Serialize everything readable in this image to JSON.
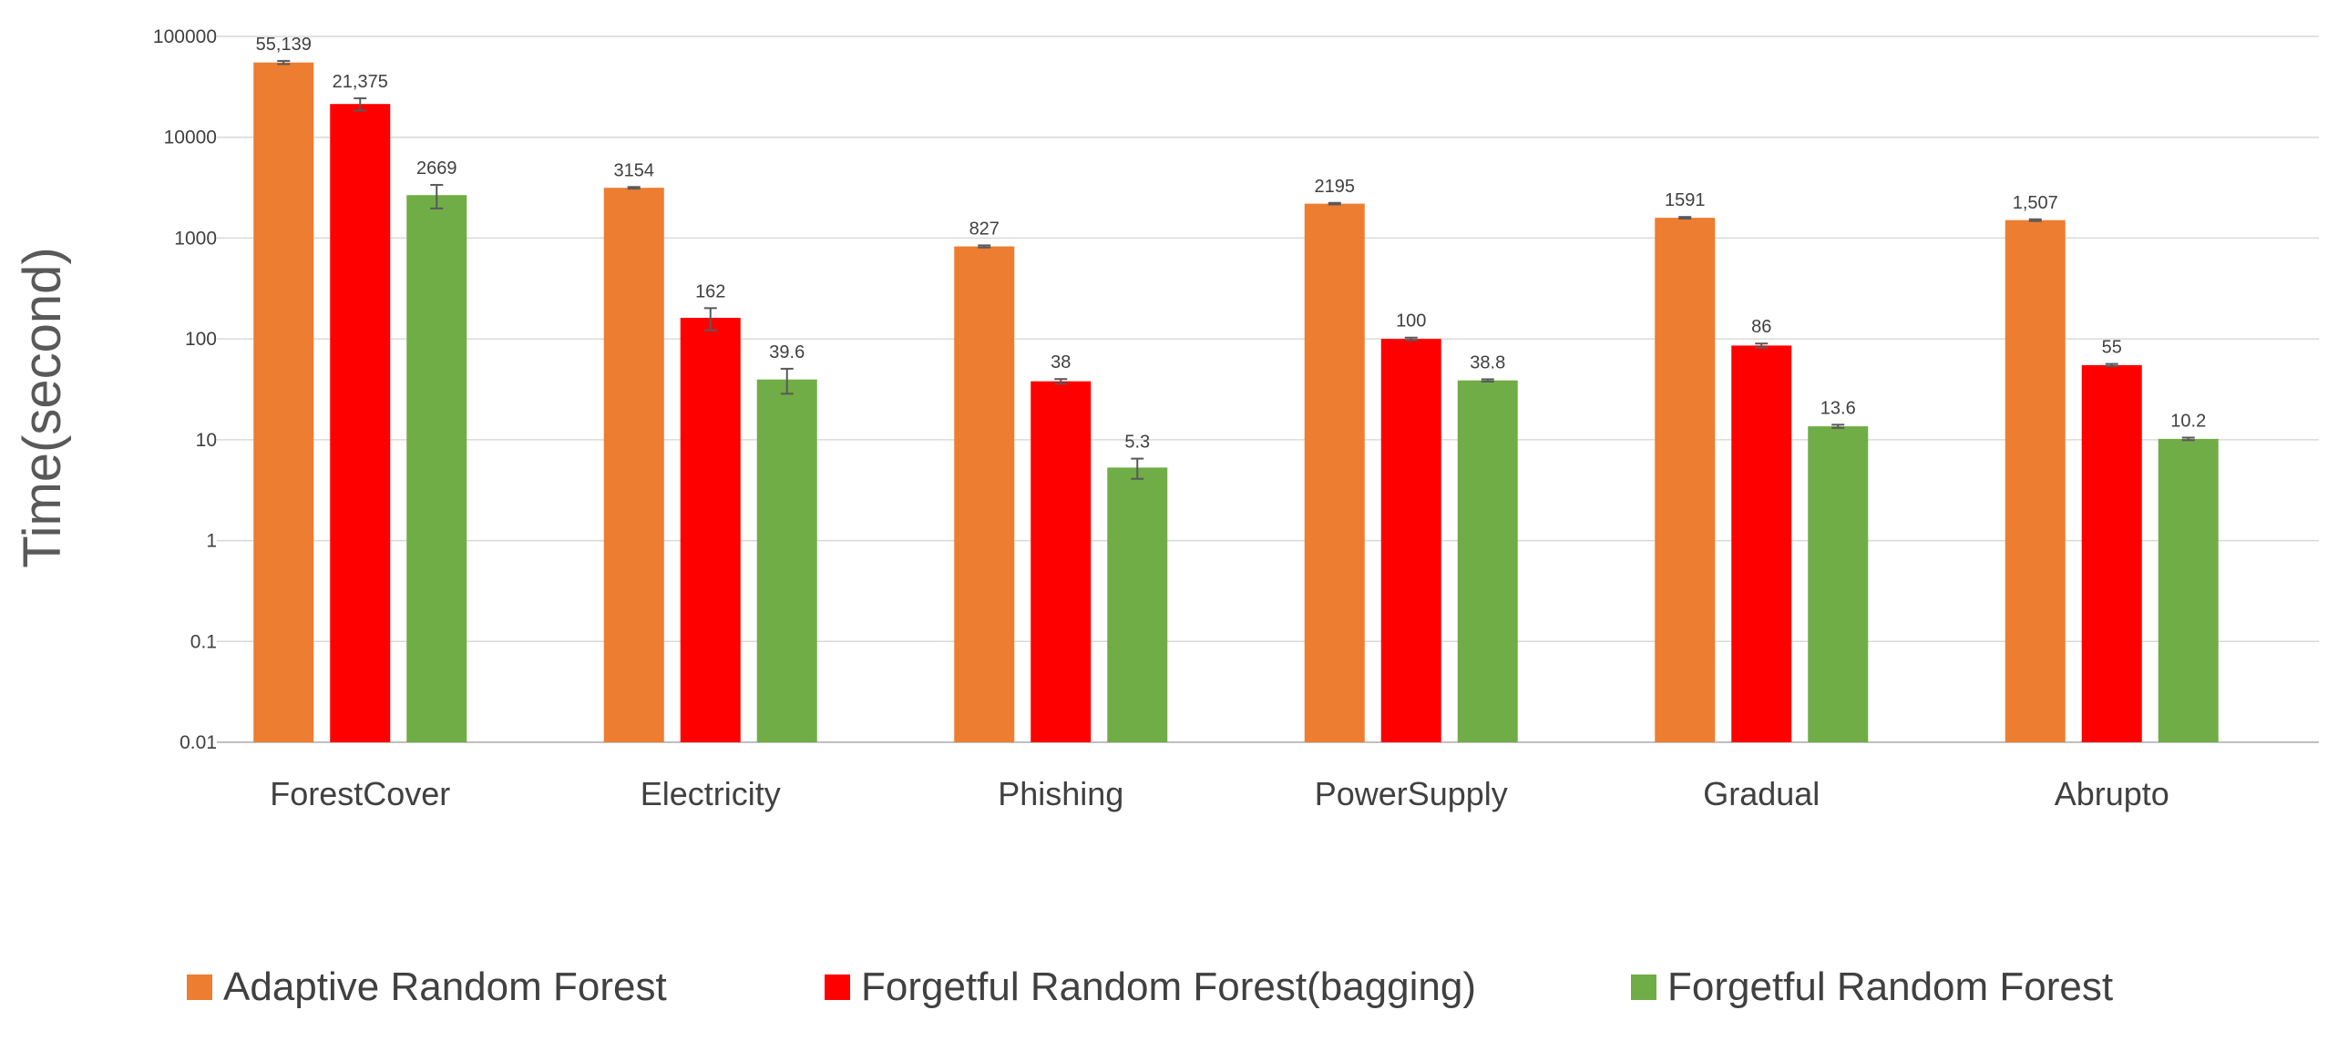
{
  "chart_data": {
    "type": "bar",
    "title": "",
    "xlabel": "",
    "ylabel": "Time(second)",
    "yscale": "log",
    "ylim": [
      0.01,
      100000
    ],
    "yticks": [
      "0.01",
      "0.1",
      "1",
      "10",
      "100",
      "1000",
      "10000",
      "100000"
    ],
    "grid": true,
    "legend_position": "bottom",
    "categories": [
      "ForestCover",
      "Electricity",
      "Phishing",
      "PowerSupply",
      "Gradual",
      "Abrupto"
    ],
    "series": [
      {
        "name": "Adaptive Random Forest",
        "color": "#ED7D31",
        "values": [
          55139,
          3154,
          827,
          2195,
          1591,
          1507
        ],
        "labels": [
          "55,139",
          "3154",
          "827",
          "2195",
          "1591",
          "1,507"
        ],
        "errors": [
          2000,
          60,
          20,
          40,
          30,
          30
        ]
      },
      {
        "name": "Forgetful Random Forest(bagging)",
        "color": "#FF0000",
        "values": [
          21375,
          162,
          38,
          100,
          86,
          55
        ],
        "labels": [
          "21,375",
          "162",
          "38",
          "100",
          "86",
          "55"
        ],
        "errors": [
          3000,
          40,
          2,
          3,
          4,
          1.5
        ]
      },
      {
        "name": "Forgetful Random Forest",
        "color": "#70AD47",
        "values": [
          2669,
          39.6,
          5.3,
          38.8,
          13.6,
          10.2
        ],
        "labels": [
          "2669",
          "39.6",
          "5.3",
          "38.8",
          "13.6",
          "10.2"
        ],
        "errors": [
          700,
          11,
          1.2,
          1,
          0.5,
          0.3
        ]
      }
    ]
  }
}
